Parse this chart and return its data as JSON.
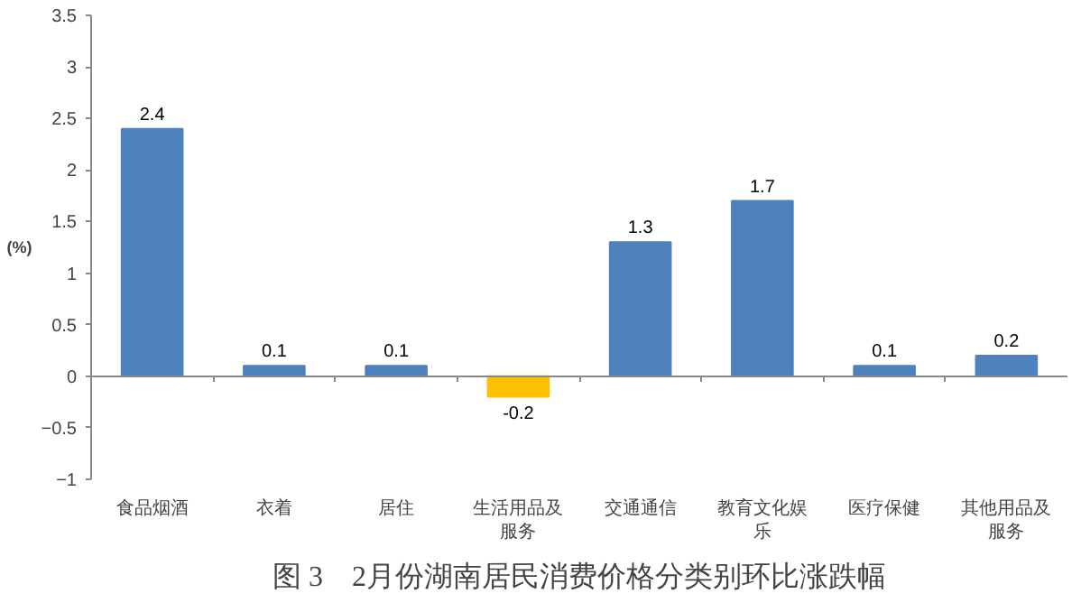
{
  "chart_data": {
    "type": "bar",
    "title": "图 3　2月份湖南居民消费价格分类别环比涨跌幅",
    "ylabel": "(%)",
    "categories": [
      "食品烟酒",
      "衣着",
      "居住",
      "生活用品及服务",
      "交通通信",
      "教育文化娱乐",
      "医疗保健",
      "其他用品及服务"
    ],
    "values": [
      2.4,
      0.1,
      0.1,
      -0.2,
      1.3,
      1.7,
      0.1,
      0.2
    ],
    "colors": [
      "#4f81bd",
      "#4f81bd",
      "#4f81bd",
      "#ffc000",
      "#4f81bd",
      "#4f81bd",
      "#4f81bd",
      "#4f81bd"
    ],
    "ylim": [
      -1,
      3.5
    ],
    "yticks": [
      -1,
      -0.5,
      0,
      0.5,
      1,
      1.5,
      2,
      2.5,
      3,
      3.5
    ],
    "data_labels": true
  }
}
